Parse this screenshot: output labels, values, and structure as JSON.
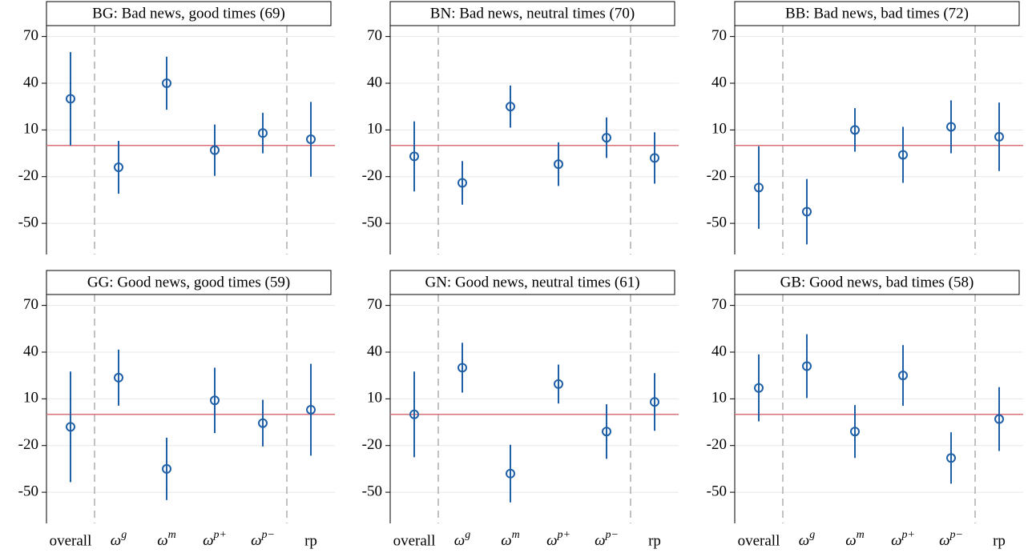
{
  "chart_data": [
    {
      "type": "errorbar",
      "title": "BG: Bad news, good times (69)",
      "values": [
        30,
        -14,
        40,
        -3,
        8,
        4
      ],
      "errors": [
        30,
        17,
        17,
        16.5,
        13,
        24
      ],
      "color": "#1f5fa6",
      "reference_line": 0,
      "reference_color": "#d9707a",
      "ylim": [
        -70,
        77
      ],
      "yticks": [
        -50,
        -20,
        10,
        40,
        70
      ],
      "grid": true
    },
    {
      "type": "errorbar",
      "title": "BN: Bad news, neutral times (70)",
      "values": [
        -7,
        -24,
        25,
        -12,
        5,
        -8
      ],
      "errors": [
        22.5,
        14,
        13.5,
        14,
        13,
        16.5
      ],
      "color": "#1f5fa6",
      "reference_line": 0,
      "reference_color": "#d9707a",
      "ylim": [
        -70,
        77
      ],
      "yticks": [
        -50,
        -20,
        10,
        40,
        70
      ],
      "grid": true
    },
    {
      "type": "errorbar",
      "title": "BB: Bad news, bad times (72)",
      "values": [
        -27,
        -42.5,
        10,
        -6,
        12,
        5.6
      ],
      "errors": [
        26.5,
        21,
        14,
        18,
        17,
        22
      ],
      "color": "#1f5fa6",
      "reference_line": 0,
      "reference_color": "#d9707a",
      "ylim": [
        -70,
        77
      ],
      "yticks": [
        -50,
        -20,
        10,
        40,
        70
      ],
      "grid": true
    },
    {
      "type": "errorbar",
      "title": "GG: Good news, good times (59)",
      "categories": [
        "overall",
        "ωg",
        "ωm",
        "ωp+",
        "ωp−",
        "rp"
      ],
      "values": [
        -8,
        23.6,
        -35,
        9,
        -5.6,
        3
      ],
      "errors": [
        35.5,
        18,
        20,
        21,
        15,
        29.5
      ],
      "color": "#1f5fa6",
      "reference_line": 0,
      "reference_color": "#d9707a",
      "ylim": [
        -70,
        77
      ],
      "yticks": [
        -50,
        -20,
        10,
        40,
        70
      ],
      "grid": true
    },
    {
      "type": "errorbar",
      "title": "GN: Good news, neutral times (61)",
      "categories": [
        "overall",
        "ωg",
        "ωm",
        "ωp+",
        "ωp−",
        "rp"
      ],
      "values": [
        0,
        30,
        -38,
        19.5,
        -11,
        8
      ],
      "errors": [
        27.5,
        16,
        18.5,
        12.5,
        17.5,
        18.5
      ],
      "color": "#1f5fa6",
      "reference_line": 0,
      "reference_color": "#d9707a",
      "ylim": [
        -70,
        77
      ],
      "yticks": [
        -50,
        -20,
        10,
        40,
        70
      ],
      "grid": true
    },
    {
      "type": "errorbar",
      "title": "GB: Good news, bad times (58)",
      "categories": [
        "overall",
        "ωg",
        "ωm",
        "ωp+",
        "ωp−",
        "rp"
      ],
      "values": [
        17,
        31,
        -11,
        25,
        -28,
        -3
      ],
      "errors": [
        21.5,
        20.5,
        17,
        19.5,
        16.5,
        20.5
      ],
      "color": "#1f5fa6",
      "reference_line": 0,
      "reference_color": "#d9707a",
      "ylim": [
        -70,
        77
      ],
      "yticks": [
        -50,
        -20,
        10,
        40,
        70
      ],
      "grid": true
    }
  ]
}
